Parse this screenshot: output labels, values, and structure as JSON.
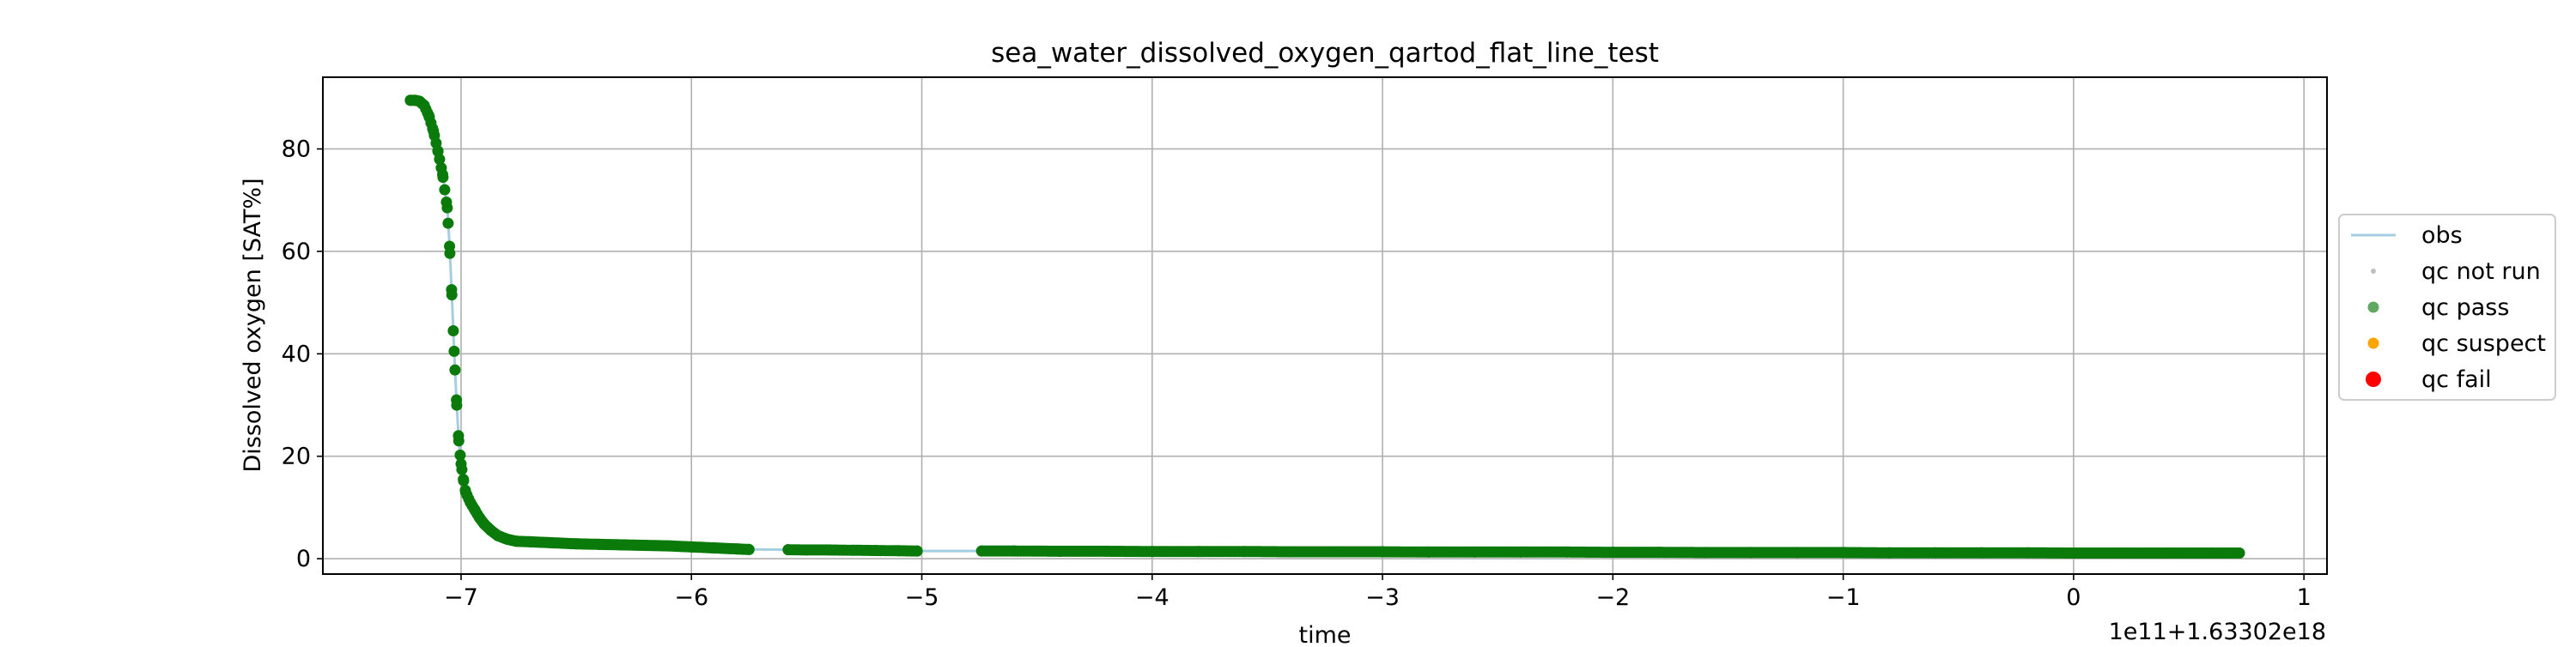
{
  "chart_data": {
    "type": "scatter",
    "title": "sea_water_dissolved_oxygen_qartod_flat_line_test",
    "xlabel": "time",
    "ylabel": "Dissolved oxygen [SAT%]",
    "x_offset_label": "1e11+1.63302e18",
    "xlim": [
      -7.6,
      1.1
    ],
    "ylim": [
      -3,
      94
    ],
    "x_ticks": [
      -7,
      -6,
      -5,
      -4,
      -3,
      -2,
      -1,
      0,
      1
    ],
    "x_tick_labels": [
      "−7",
      "−6",
      "−5",
      "−4",
      "−3",
      "−2",
      "−1",
      "0",
      "1"
    ],
    "y_ticks": [
      0,
      20,
      40,
      60,
      80
    ],
    "y_tick_labels": [
      "0",
      "20",
      "40",
      "60",
      "80"
    ],
    "grid": true,
    "legend_placement": "center right, outside",
    "legend": [
      {
        "label": "obs",
        "marker": "line",
        "color": "#a6cee3"
      },
      {
        "label": "qc not run",
        "marker": "small-dot",
        "color": "#c0c0c0"
      },
      {
        "label": "qc pass",
        "marker": "dot",
        "color": "#2e8b2e"
      },
      {
        "label": "qc suspect",
        "marker": "dot",
        "color": "#ffa500"
      },
      {
        "label": "qc fail",
        "marker": "big-dot",
        "color": "#ff0000"
      }
    ],
    "series": [
      {
        "name": "obs",
        "style": "line",
        "color": "#a6cee3",
        "x": [
          -7.22,
          -7.2,
          -7.18,
          -7.16,
          -7.14,
          -7.12,
          -7.1,
          -7.08,
          -7.06,
          -7.05,
          -7.04,
          -7.03,
          -7.02,
          -7.01,
          -7.0,
          -6.99,
          -6.98,
          -6.96,
          -6.94,
          -6.92,
          -6.9,
          -6.87,
          -6.84,
          -6.8,
          -6.76,
          -6.7,
          -6.6,
          -6.5,
          -6.4,
          -6.3,
          -6.2,
          -6.1,
          -6.0,
          -5.9,
          -5.8,
          -5.75,
          -5.58,
          -5.5,
          -5.4,
          -5.3,
          -5.2,
          -5.1,
          -5.02,
          -4.74,
          -4.6,
          -4.4,
          -4.2,
          -4.0,
          -3.8,
          -3.6,
          -3.4,
          -3.2,
          -3.0,
          -2.8,
          -2.6,
          -2.4,
          -2.2,
          -2.0,
          -1.8,
          -1.6,
          -1.4,
          -1.2,
          -1.0,
          -0.8,
          -0.6,
          -0.4,
          -0.2,
          0.0,
          0.2,
          0.4,
          0.6,
          0.72
        ],
        "y": [
          89.5,
          89.5,
          89.3,
          88.5,
          86.5,
          83.5,
          79.5,
          75.0,
          68.5,
          61.0,
          51.5,
          40.5,
          31.0,
          23.0,
          18.5,
          15.5,
          13.0,
          11.0,
          9.5,
          8.0,
          6.8,
          5.5,
          4.5,
          3.8,
          3.4,
          3.3,
          3.1,
          2.9,
          2.8,
          2.7,
          2.6,
          2.5,
          2.3,
          2.1,
          1.9,
          1.8,
          1.75,
          1.7,
          1.7,
          1.65,
          1.6,
          1.55,
          1.5,
          1.5,
          1.5,
          1.45,
          1.45,
          1.4,
          1.4,
          1.4,
          1.35,
          1.35,
          1.35,
          1.3,
          1.3,
          1.3,
          1.3,
          1.25,
          1.25,
          1.2,
          1.2,
          1.2,
          1.2,
          1.15,
          1.15,
          1.15,
          1.15,
          1.1,
          1.1,
          1.1,
          1.1,
          1.1
        ]
      },
      {
        "name": "qc pass",
        "style": "points",
        "color": "#0a7a0a",
        "segments": [
          {
            "x_start": -7.22,
            "x_end": -5.75
          },
          {
            "x_start": -5.58,
            "x_end": -5.02
          },
          {
            "x_start": -4.74,
            "x_end": 0.72
          }
        ],
        "x": [
          -7.22,
          -7.2,
          -7.18,
          -7.16,
          -7.14,
          -7.12,
          -7.1,
          -7.08,
          -7.06,
          -7.05,
          -7.04,
          -7.03,
          -7.02,
          -7.01,
          -7.0,
          -6.99,
          -6.98,
          -6.96,
          -6.94,
          -6.92,
          -6.9,
          -6.87,
          -6.84,
          -6.8,
          -6.76,
          -6.7,
          -6.6,
          -6.5,
          -6.4,
          -6.3,
          -6.2,
          -6.1,
          -6.0,
          -5.9,
          -5.8,
          -5.75,
          -5.58,
          -5.5,
          -5.4,
          -5.3,
          -5.2,
          -5.1,
          -5.02,
          -4.74,
          -4.6,
          -4.4,
          -4.2,
          -4.0,
          -3.8,
          -3.6,
          -3.4,
          -3.2,
          -3.0,
          -2.8,
          -2.6,
          -2.4,
          -2.2,
          -2.0,
          -1.8,
          -1.6,
          -1.4,
          -1.2,
          -1.0,
          -0.8,
          -0.6,
          -0.4,
          -0.2,
          0.0,
          0.2,
          0.4,
          0.6,
          0.72
        ],
        "y": [
          89.5,
          89.5,
          89.3,
          88.5,
          86.5,
          83.5,
          79.5,
          75.0,
          68.5,
          61.0,
          51.5,
          40.5,
          31.0,
          23.0,
          18.5,
          15.5,
          13.0,
          11.0,
          9.5,
          8.0,
          6.8,
          5.5,
          4.5,
          3.8,
          3.4,
          3.3,
          3.1,
          2.9,
          2.8,
          2.7,
          2.6,
          2.5,
          2.3,
          2.1,
          1.9,
          1.8,
          1.75,
          1.7,
          1.7,
          1.65,
          1.6,
          1.55,
          1.5,
          1.5,
          1.5,
          1.45,
          1.45,
          1.4,
          1.4,
          1.4,
          1.35,
          1.35,
          1.35,
          1.3,
          1.3,
          1.3,
          1.3,
          1.25,
          1.25,
          1.2,
          1.2,
          1.2,
          1.2,
          1.15,
          1.15,
          1.15,
          1.15,
          1.1,
          1.1,
          1.1,
          1.1,
          1.1
        ]
      }
    ]
  }
}
